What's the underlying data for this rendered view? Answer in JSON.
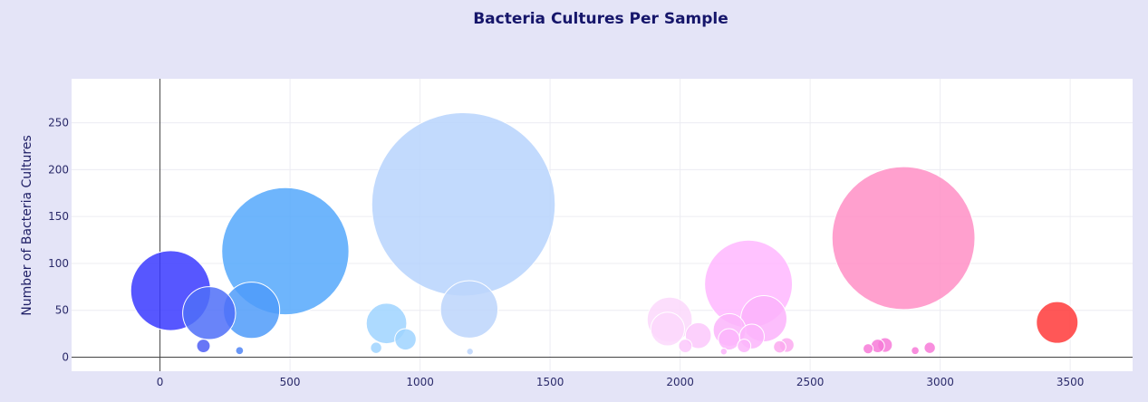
{
  "chart_data": {
    "type": "scatter",
    "title": "Bacteria Cultures Per Sample",
    "xlabel": "",
    "ylabel": "Number of Bacteria Cultures",
    "xlim": [
      -340,
      3740
    ],
    "ylim": [
      -15,
      297
    ],
    "xticks": [
      "0",
      "500",
      "1000",
      "1500",
      "2000",
      "2500",
      "3000",
      "3500"
    ],
    "xtick_values": [
      0,
      500,
      1000,
      1500,
      2000,
      2500,
      3000,
      3500
    ],
    "yticks": [
      "0",
      "50",
      "100",
      "150",
      "200",
      "250"
    ],
    "ytick_values": [
      0,
      50,
      100,
      150,
      200,
      250
    ],
    "grid": true,
    "bubble_size_encodes": "y",
    "points": [
      {
        "x": 41,
        "y": 71,
        "color": "#3a3aff"
      },
      {
        "x": 189,
        "y": 47,
        "color": "#4f6ef8"
      },
      {
        "x": 352,
        "y": 50,
        "color": "#4f9bf9"
      },
      {
        "x": 482,
        "y": 113,
        "color": "#55a8fb"
      },
      {
        "x": 167,
        "y": 12,
        "color": "#4d5ef5"
      },
      {
        "x": 306,
        "y": 7,
        "color": "#4f85f6"
      },
      {
        "x": 871,
        "y": 36,
        "color": "#9fd3ff"
      },
      {
        "x": 944,
        "y": 19,
        "color": "#9fd3ff"
      },
      {
        "x": 831,
        "y": 10,
        "color": "#9fd3ff"
      },
      {
        "x": 1167,
        "y": 163,
        "color": "#b7d4fd"
      },
      {
        "x": 1189,
        "y": 51,
        "color": "#bcd5fc"
      },
      {
        "x": 1192,
        "y": 6,
        "color": "#bcd5fc"
      },
      {
        "x": 1960,
        "y": 40,
        "color": "#fbd8fb"
      },
      {
        "x": 1952,
        "y": 30,
        "color": "#fbd8fb"
      },
      {
        "x": 2070,
        "y": 23,
        "color": "#fbc8fb"
      },
      {
        "x": 2020,
        "y": 12,
        "color": "#fbc8fb"
      },
      {
        "x": 2263,
        "y": 78,
        "color": "#ffb7ff"
      },
      {
        "x": 2322,
        "y": 41,
        "color": "#fbb3fb"
      },
      {
        "x": 2190,
        "y": 29,
        "color": "#fbb5fb"
      },
      {
        "x": 2188,
        "y": 19,
        "color": "#fbb5fb"
      },
      {
        "x": 2276,
        "y": 22,
        "color": "#fbb5fb"
      },
      {
        "x": 2246,
        "y": 12,
        "color": "#fbb5fb"
      },
      {
        "x": 2410,
        "y": 13,
        "color": "#fbaaf0"
      },
      {
        "x": 2383,
        "y": 11,
        "color": "#fbaaf0"
      },
      {
        "x": 2168,
        "y": 6,
        "color": "#fbb5fb"
      },
      {
        "x": 2859,
        "y": 127,
        "color": "#ff8fc6"
      },
      {
        "x": 2788,
        "y": 13,
        "color": "#f77ad8"
      },
      {
        "x": 2760,
        "y": 12,
        "color": "#f77ad8"
      },
      {
        "x": 2960,
        "y": 10,
        "color": "#f77ad8"
      },
      {
        "x": 2723,
        "y": 9,
        "color": "#f77ad8"
      },
      {
        "x": 2904,
        "y": 7,
        "color": "#f77ad8"
      },
      {
        "x": 3450,
        "y": 37,
        "color": "#ff3a3a"
      }
    ]
  }
}
